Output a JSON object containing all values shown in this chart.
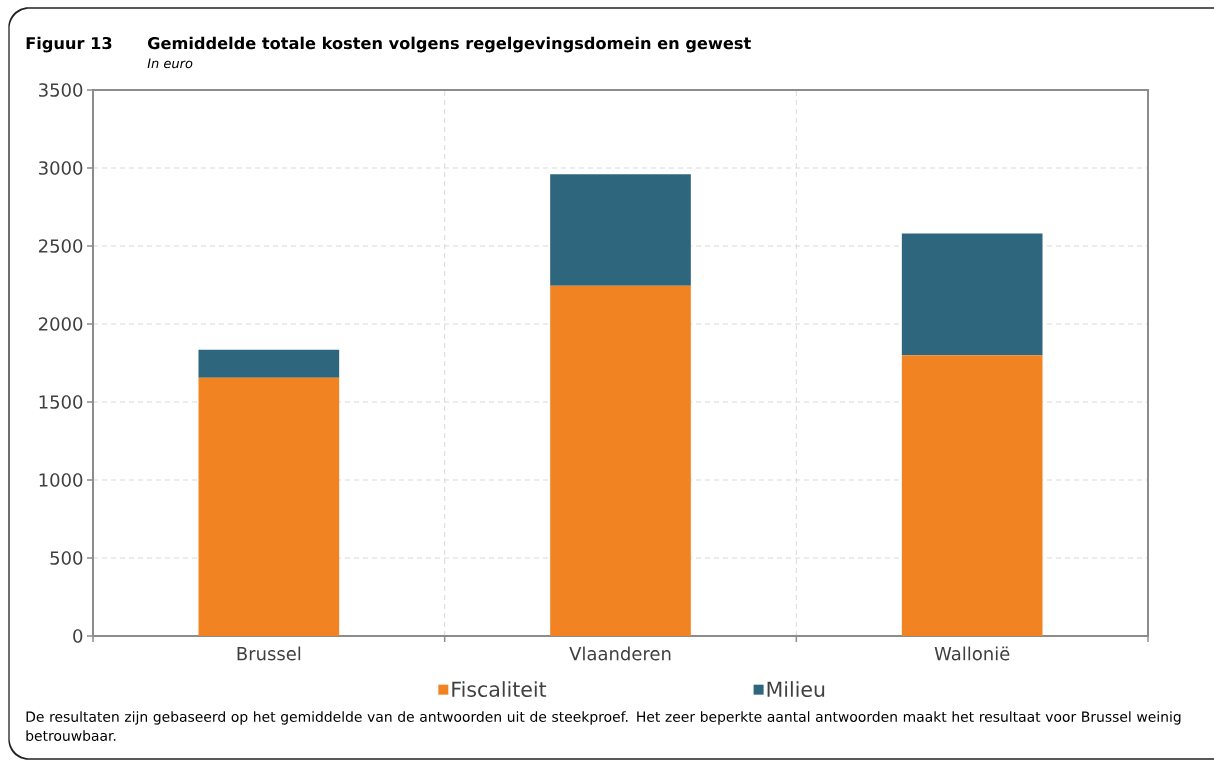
{
  "chart_data": {
    "type": "bar",
    "title": "Gemiddelde totale kosten volgens regelgevingsdomein en gewest",
    "subtitle": "In euro",
    "annotations": [
      "Figuur 13",
      "De resultaten zijn gebaseerd op het gemiddelde van de antwoorden uit de steekproef. Het zeer beperkte aantal antwoorden maakt het resultaat voor Brussel weinig betrouwbaar."
    ],
    "categories": [
      "Brussel",
      "Vlaanderen",
      "Wallonië"
    ],
    "series": [
      {
        "name": "Fiscaliteit",
        "color": "#f28322",
        "values": [
          1655,
          2245,
          1800
        ]
      },
      {
        "name": "Milieu",
        "color": "#2e677d",
        "values": [
          180,
          715,
          780
        ]
      }
    ],
    "stacked": true,
    "ylim": [
      0,
      3500
    ],
    "yticks": [
      0,
      500,
      1000,
      1500,
      2000,
      2500,
      3000,
      3500
    ],
    "grid": true,
    "legend": "bottom"
  }
}
